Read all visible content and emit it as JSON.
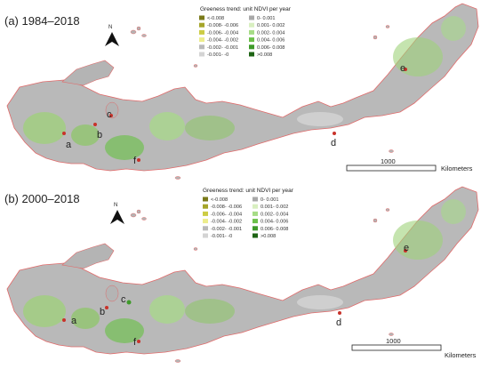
{
  "figure": {
    "panels": [
      {
        "label": "(a) 1984–2018",
        "legend_title": "Greeness trend: unit NDVI per year",
        "scale_value": "1000",
        "scale_unit": "Kilometers",
        "north_label": "N",
        "sites": [
          "a",
          "b",
          "c",
          "d",
          "e",
          "f"
        ]
      },
      {
        "label": "(b) 2000–2018",
        "legend_title": "Greeness trend: unit NDVI per year",
        "scale_value": "1000",
        "scale_unit": "Kilometers",
        "north_label": "N",
        "sites": [
          "a",
          "b",
          "c",
          "d",
          "e",
          "f"
        ]
      }
    ],
    "legend_left": [
      {
        "label": "<-0.008",
        "color": "#7a7a1a"
      },
      {
        "label": "-0.008- -0.006",
        "color": "#a5a52a"
      },
      {
        "label": "-0.006- -0.004",
        "color": "#cccc44"
      },
      {
        "label": "-0.004- -0.002",
        "color": "#eded8c"
      },
      {
        "label": "-0.002- -0.001",
        "color": "#b9b9b9"
      },
      {
        "label": "-0.001- -0",
        "color": "#d4d4d4"
      }
    ],
    "legend_right": [
      {
        "label": "0- 0.001",
        "color": "#a8a8a8"
      },
      {
        "label": "0.001- 0.002",
        "color": "#d8efc0"
      },
      {
        "label": "0.002- 0.004",
        "color": "#a6dc86"
      },
      {
        "label": "0.004- 0.006",
        "color": "#6cc04a"
      },
      {
        "label": "0.006- 0.008",
        "color": "#3e9a2a"
      },
      {
        "label": ">0.008",
        "color": "#1e6414"
      }
    ],
    "colors": {
      "land_grey": "#b4b4b4",
      "land_green": "#8cc864",
      "coast": "#e06a6a",
      "marker": "#c8322a"
    }
  }
}
